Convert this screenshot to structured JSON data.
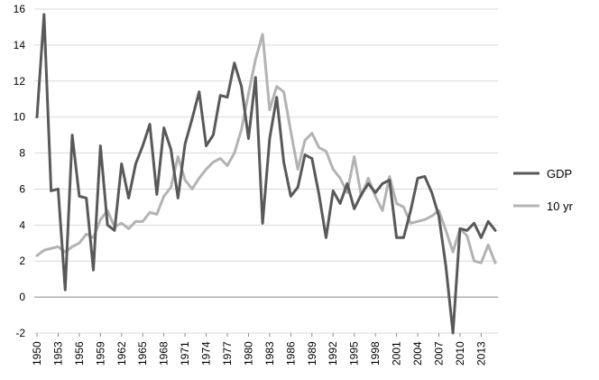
{
  "chart_data": {
    "type": "line",
    "title": "",
    "xlabel": "",
    "ylabel": "",
    "ylim": [
      -2,
      16
    ],
    "ytick_step": 2,
    "grid": "horizontal",
    "legend_position": "right",
    "x": [
      1950,
      1951,
      1952,
      1953,
      1954,
      1955,
      1956,
      1957,
      1958,
      1959,
      1960,
      1961,
      1962,
      1963,
      1964,
      1965,
      1966,
      1967,
      1968,
      1969,
      1970,
      1971,
      1972,
      1973,
      1974,
      1975,
      1976,
      1977,
      1978,
      1979,
      1980,
      1981,
      1982,
      1983,
      1984,
      1985,
      1986,
      1987,
      1988,
      1989,
      1990,
      1991,
      1992,
      1993,
      1994,
      1995,
      1996,
      1997,
      1998,
      1999,
      2000,
      2001,
      2002,
      2003,
      2004,
      2005,
      2006,
      2007,
      2008,
      2009,
      2010,
      2011,
      2012,
      2013,
      2014,
      2015
    ],
    "x_tick_labels": [
      "1950",
      "1953",
      "1956",
      "1959",
      "1962",
      "1965",
      "1968",
      "1971",
      "1974",
      "1977",
      "1980",
      "1983",
      "1986",
      "1989",
      "1992",
      "1995",
      "1998",
      "2001",
      "2004",
      "2007",
      "2010",
      "2013"
    ],
    "series": [
      {
        "name": "GDP",
        "color": "#595959",
        "values": [
          10.0,
          15.7,
          5.9,
          6.0,
          0.4,
          9.0,
          5.6,
          5.5,
          1.5,
          8.4,
          4.0,
          3.7,
          7.4,
          5.5,
          7.4,
          8.4,
          9.6,
          5.7,
          9.4,
          8.2,
          5.5,
          8.5,
          9.9,
          11.4,
          8.4,
          9.0,
          11.2,
          11.1,
          13.0,
          11.7,
          8.8,
          12.2,
          4.1,
          8.8,
          11.1,
          7.5,
          5.6,
          6.1,
          7.9,
          7.7,
          5.7,
          3.3,
          5.9,
          5.2,
          6.3,
          4.9,
          5.7,
          6.3,
          5.8,
          6.3,
          6.5,
          3.3,
          3.3,
          4.8,
          6.6,
          6.7,
          5.8,
          4.5,
          1.7,
          -2.0,
          3.8,
          3.7,
          4.1,
          3.3,
          4.2,
          3.7
        ]
      },
      {
        "name": "10 yr",
        "color": "#b3b3b3",
        "values": [
          2.3,
          2.6,
          2.7,
          2.8,
          2.5,
          2.8,
          3.0,
          3.5,
          3.3,
          4.3,
          4.8,
          3.9,
          4.1,
          3.8,
          4.2,
          4.2,
          4.7,
          4.6,
          5.6,
          6.1,
          7.8,
          6.5,
          6.0,
          6.6,
          7.1,
          7.5,
          7.7,
          7.3,
          8.0,
          9.3,
          11.3,
          13.2,
          14.6,
          10.4,
          11.7,
          11.4,
          9.2,
          7.1,
          8.7,
          9.1,
          8.3,
          8.1,
          7.1,
          6.6,
          5.8,
          7.8,
          5.6,
          6.6,
          5.6,
          4.8,
          6.7,
          5.2,
          5.0,
          4.1,
          4.2,
          4.3,
          4.5,
          4.8,
          3.7,
          2.5,
          3.8,
          3.4,
          2.0,
          1.9,
          2.9,
          1.9
        ]
      }
    ]
  }
}
